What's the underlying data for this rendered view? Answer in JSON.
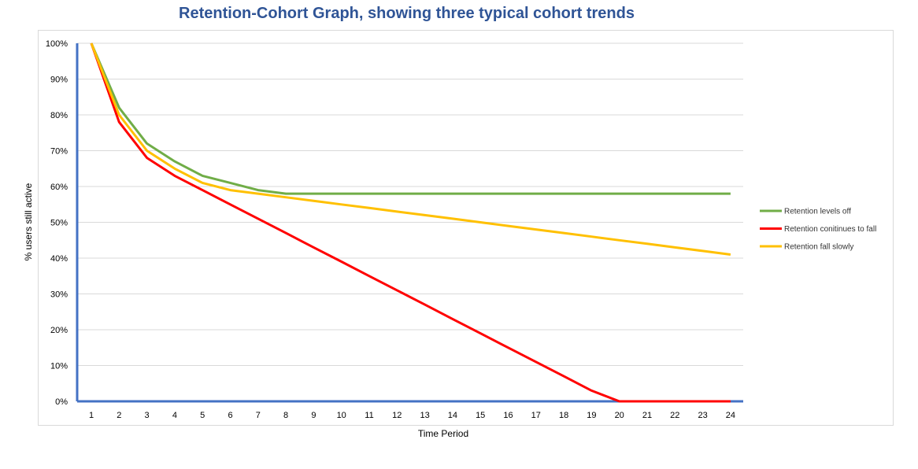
{
  "chart_data": {
    "type": "line",
    "title": "Retention-Cohort Graph, showing three typical cohort trends",
    "xlabel": "Time Period",
    "ylabel": "% users still active",
    "x": [
      1,
      2,
      3,
      4,
      5,
      6,
      7,
      8,
      9,
      10,
      11,
      12,
      13,
      14,
      15,
      16,
      17,
      18,
      19,
      20,
      21,
      22,
      23,
      24
    ],
    "x_tick_labels": [
      "1",
      "2",
      "3",
      "4",
      "5",
      "6",
      "7",
      "8",
      "9",
      "10",
      "11",
      "12",
      "13",
      "14",
      "15",
      "16",
      "17",
      "18",
      "19",
      "20",
      "21",
      "22",
      "23",
      "24"
    ],
    "ylim": [
      0,
      100
    ],
    "y_ticks": [
      0,
      10,
      20,
      30,
      40,
      50,
      60,
      70,
      80,
      90,
      100
    ],
    "y_tick_labels": [
      "0%",
      "10%",
      "20%",
      "30%",
      "40%",
      "50%",
      "60%",
      "70%",
      "80%",
      "90%",
      "100%"
    ],
    "grid": true,
    "legend_position": "right",
    "series": [
      {
        "name": "Retention levels off",
        "color": "#70AD47",
        "values": [
          100,
          82,
          72,
          67,
          63,
          61,
          59,
          58,
          58,
          58,
          58,
          58,
          58,
          58,
          58,
          58,
          58,
          58,
          58,
          58,
          58,
          58,
          58,
          58
        ]
      },
      {
        "name": "Retention conitinues to fall",
        "color": "#FF0000",
        "values": [
          100,
          78,
          68,
          63,
          59,
          55,
          51,
          47,
          43,
          39,
          35,
          31,
          27,
          23,
          19,
          15,
          11,
          7,
          3,
          0,
          0,
          0,
          0,
          0
        ]
      },
      {
        "name": "Retention fall slowly",
        "color": "#FFC000",
        "values": [
          100,
          80,
          70,
          65,
          61,
          59,
          58,
          57,
          56,
          55,
          54,
          53,
          52,
          51,
          50,
          49,
          48,
          47,
          46,
          45,
          44,
          43,
          42,
          41
        ]
      }
    ]
  }
}
